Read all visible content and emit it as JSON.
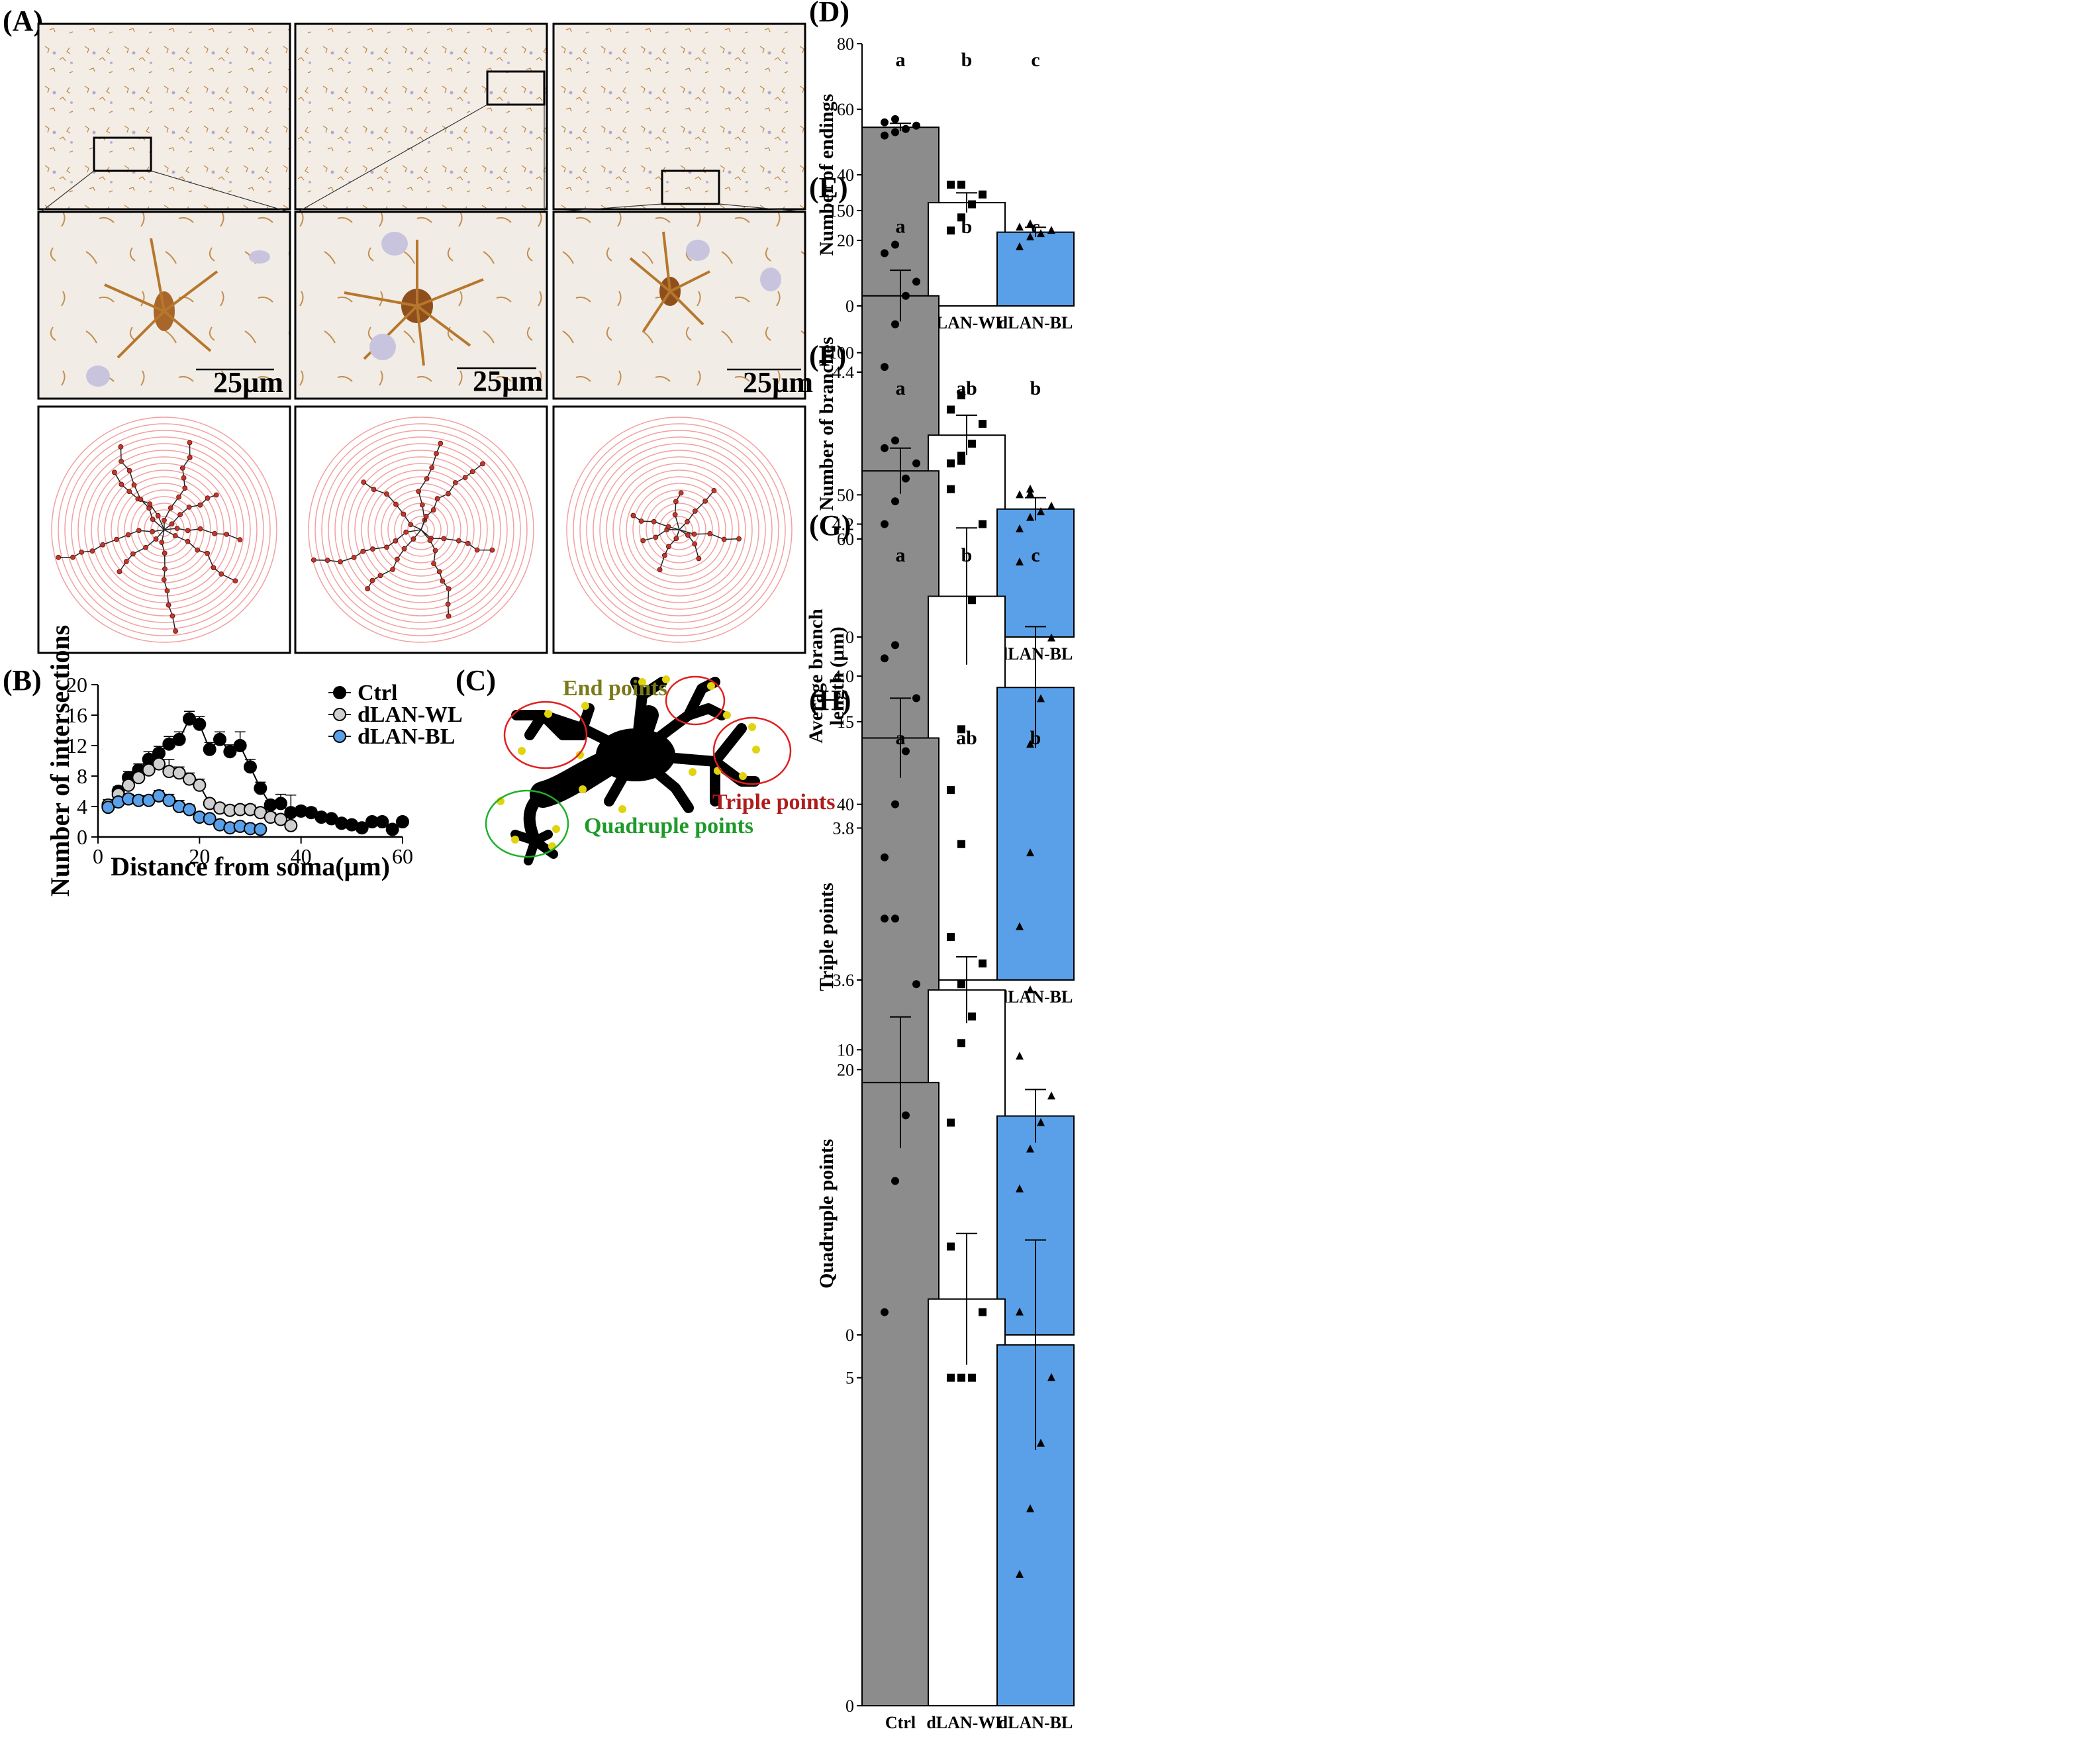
{
  "panel_labels": {
    "A": "(A)",
    "B": "(B)",
    "C": "(C)",
    "D": "(D)",
    "E": "(E)",
    "F": "(F)",
    "G": "(G)",
    "H": "(H)"
  },
  "scale_bar_label": "25µm",
  "schematic": {
    "end_points_label": "End points",
    "triple_points_label": "Triple points",
    "quadruple_points_label": "Quadruple points",
    "end_color": "#7a7a1a",
    "triple_color": "#b01c1c",
    "quad_color": "#1e9a2a"
  },
  "colors": {
    "ctrl": "#8c8c8c",
    "wl": "#ffffff",
    "bl": "#5aa0e8",
    "ring": "#f2a0a0",
    "stain": "#b7772c"
  },
  "chart_data": [
    {
      "id": "B",
      "type": "line",
      "xlabel": "Distance from soma(μm)",
      "ylabel": "Number of intersections",
      "xlim": [
        0,
        60
      ],
      "ylim": [
        0,
        20
      ],
      "xticks": [
        0,
        20,
        40,
        60
      ],
      "yticks": [
        0,
        4,
        8,
        12,
        16,
        20
      ],
      "legend_position": "top-right",
      "series": [
        {
          "name": "Ctrl",
          "marker": "#000000",
          "x": [
            2,
            4,
            6,
            8,
            10,
            12,
            14,
            16,
            18,
            20,
            22,
            24,
            26,
            28,
            30,
            32,
            34,
            36,
            38,
            40,
            42,
            44,
            46,
            48,
            50,
            52,
            54,
            56,
            58,
            60
          ],
          "y": [
            4.0,
            6.0,
            7.8,
            8.8,
            10.2,
            11.0,
            12.2,
            12.8,
            15.5,
            14.8,
            11.5,
            12.8,
            11.2,
            12.0,
            9.2,
            6.4,
            4.2,
            4.4,
            3.2,
            3.4,
            3.2,
            2.6,
            2.4,
            1.8,
            1.6,
            1.2,
            2.0,
            2.0,
            1.0,
            2.0
          ],
          "err": [
            0.6,
            0.6,
            0.8,
            0.8,
            1.0,
            0.9,
            1.0,
            1.0,
            1.0,
            1.0,
            0.9,
            1.0,
            0.9,
            1.8,
            1.0,
            0.8,
            0.6,
            1.2,
            2.3,
            0.6,
            0.6,
            0.4,
            0.3,
            0.4,
            0.3,
            0.2,
            0.3,
            0.3,
            0.2,
            0.3
          ]
        },
        {
          "name": "dLAN-WL",
          "marker": "#cfcfcf",
          "x": [
            2,
            4,
            6,
            8,
            10,
            12,
            14,
            16,
            18,
            20,
            22,
            24,
            26,
            28,
            30,
            32,
            34,
            36,
            38
          ],
          "y": [
            4.2,
            5.6,
            6.8,
            7.8,
            8.8,
            9.6,
            8.6,
            8.4,
            7.6,
            6.8,
            4.4,
            3.8,
            3.5,
            3.6,
            3.6,
            3.2,
            2.6,
            2.3,
            1.5
          ],
          "err": [
            0.7,
            0.6,
            0.7,
            0.8,
            0.9,
            1.0,
            1.6,
            0.8,
            0.8,
            0.8,
            0.5,
            0.5,
            0.5,
            0.5,
            0.6,
            0.6,
            0.6,
            0.7,
            0.4
          ]
        },
        {
          "name": "dLAN-BL",
          "marker": "#5aa0e8",
          "x": [
            2,
            4,
            6,
            8,
            10,
            12,
            14,
            16,
            18,
            20,
            22,
            24,
            26,
            28,
            30,
            32
          ],
          "y": [
            3.9,
            4.6,
            5.0,
            4.8,
            4.8,
            5.4,
            4.8,
            4.0,
            3.6,
            2.6,
            2.4,
            1.6,
            1.2,
            1.4,
            1.1,
            1.0
          ],
          "err": [
            0.4,
            0.4,
            0.6,
            0.6,
            0.6,
            0.7,
            0.8,
            0.8,
            0.6,
            0.5,
            0.5,
            0.4,
            0.3,
            0.3,
            0.2,
            0.2
          ]
        }
      ]
    },
    {
      "id": "D",
      "type": "bar",
      "ylabel": "Number of endings",
      "categories": [
        "Ctrl",
        "dLAN-WL",
        "dLAN-BL"
      ],
      "values": [
        54.5,
        31.5,
        22.5
      ],
      "sem": [
        1.2,
        3.0,
        1.5
      ],
      "sig": [
        "a",
        "b",
        "c"
      ],
      "ylim": [
        0,
        80
      ],
      "yticks": [
        0,
        20,
        40,
        60,
        80
      ],
      "points": [
        [
          52,
          53,
          54,
          55,
          56,
          57
        ],
        [
          23,
          27,
          31,
          34,
          37,
          37
        ],
        [
          18,
          21,
          22,
          23,
          24,
          25
        ]
      ]
    },
    {
      "id": "E",
      "type": "bar",
      "ylabel": "Number of branches",
      "categories": [
        "Ctrl",
        "dLAN-WL",
        "dLAN-BL"
      ],
      "values": [
        120,
        71,
        45
      ],
      "sem": [
        9,
        7,
        4
      ],
      "sig": [
        "a",
        "b",
        "c"
      ],
      "ylim": [
        0,
        150
      ],
      "yticks": [
        0,
        50,
        100,
        150
      ],
      "points": [
        [
          95,
          110,
          120,
          125,
          135,
          138
        ],
        [
          52,
          62,
          68,
          75,
          80,
          85
        ],
        [
          38,
          42,
          44,
          46,
          50,
          52
        ]
      ]
    },
    {
      "id": "F",
      "type": "bar",
      "ylabel": "Average branch length (μm)",
      "categories": [
        "Ctrl",
        "dLAN-WL",
        "dLAN-BL"
      ],
      "values": [
        4.27,
        4.105,
        3.985
      ],
      "sem": [
        0.03,
        0.09,
        0.08
      ],
      "sig": [
        "a",
        "ab",
        "b"
      ],
      "ylim": [
        3.6,
        4.4
      ],
      "yticks": [
        3.6,
        3.8,
        4.0,
        4.2,
        4.4
      ],
      "points": [
        [
          4.2,
          4.23,
          4.26,
          4.28,
          4.3,
          4.31
        ],
        [
          3.85,
          3.93,
          4.1,
          4.2,
          4.28,
          4.29
        ],
        [
          3.67,
          3.91,
          3.97,
          4.05,
          4.15,
          4.24
        ]
      ]
    },
    {
      "id": "G",
      "type": "bar",
      "ylabel": "Triple points",
      "categories": [
        "Ctrl",
        "dLAN-WL",
        "dLAN-BL"
      ],
      "values": [
        45,
        26,
        16.5
      ],
      "sem": [
        3,
        2.5,
        2
      ],
      "sig": [
        "a",
        "b",
        "c"
      ],
      "ylim": [
        0,
        60
      ],
      "yticks": [
        0,
        20,
        40,
        60
      ],
      "points": [
        [
          36,
          40,
          44,
          48,
          51,
          52
        ],
        [
          16,
          22,
          24,
          28,
          30,
          37
        ],
        [
          11,
          14,
          16,
          18,
          21,
          26
        ]
      ]
    },
    {
      "id": "H",
      "type": "bar",
      "ylabel": "Quadruple points",
      "categories": [
        "Ctrl",
        "dLAN-WL",
        "dLAN-BL"
      ],
      "values": [
        9.5,
        6.2,
        5.5
      ],
      "sem": [
        1.0,
        1.0,
        1.6
      ],
      "sig": [
        "a",
        "ab",
        "b"
      ],
      "ylim": [
        0,
        15
      ],
      "yticks": [
        0,
        5,
        10,
        15
      ],
      "points": [
        [
          6,
          8,
          9,
          11,
          12,
          12
        ],
        [
          5,
          5,
          5,
          6,
          7,
          11
        ],
        [
          2,
          3,
          4,
          5,
          6,
          13
        ]
      ]
    }
  ]
}
